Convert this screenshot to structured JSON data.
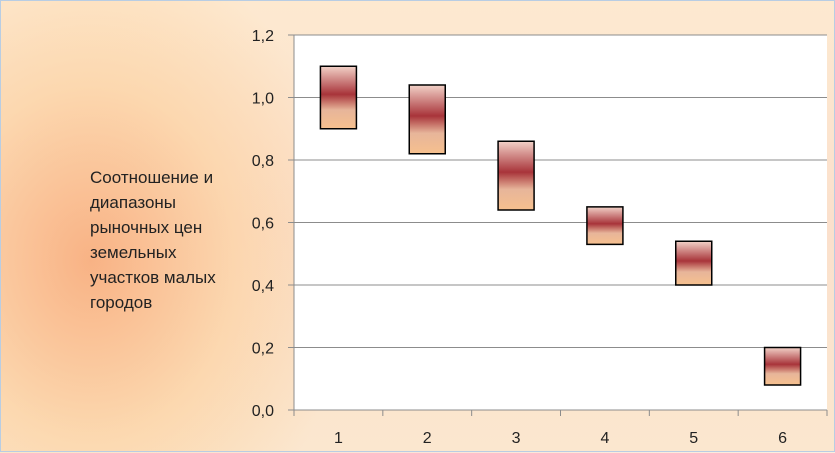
{
  "chart_data": {
    "type": "floating-bar",
    "title": "",
    "xlabel": "",
    "ylabel": "Соотношение и диапазоны рыночных цен земельных участков малых городов",
    "categories": [
      "1",
      "2",
      "3",
      "4",
      "5",
      "6"
    ],
    "series": [
      {
        "low": [
          0.9,
          0.82,
          0.64,
          0.53,
          0.4,
          0.08
        ],
        "high": [
          1.1,
          1.04,
          0.86,
          0.65,
          0.54,
          0.2
        ]
      }
    ],
    "ylim": [
      0,
      1.2
    ],
    "yticks": [
      "0,0",
      "0,2",
      "0,4",
      "0,6",
      "0,8",
      "1,0",
      "1,2"
    ],
    "grid": true,
    "legend": "none",
    "colors": {
      "bar_dark": "#a8343a",
      "bar_mid": "#e7b59a",
      "bar_light": "#f6c08e",
      "grid": "#8c8c8c",
      "plot_bg": "#ffffff"
    }
  }
}
